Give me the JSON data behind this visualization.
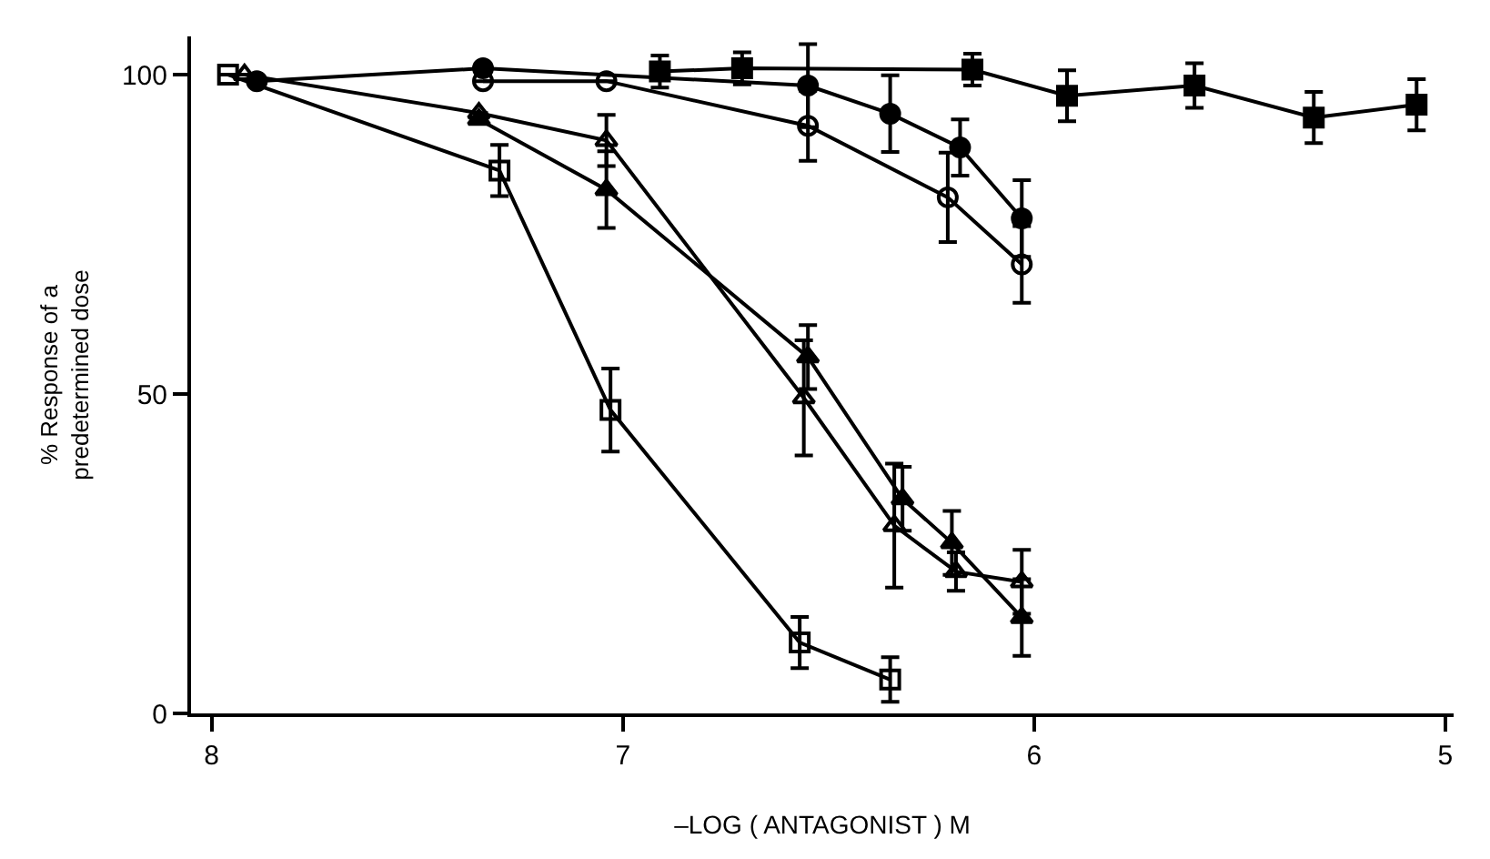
{
  "chart_data": {
    "type": "line",
    "xlabel": "–LOG ( ANTAGONIST ) M",
    "ylabel": "% Response of a\npredetermined dose",
    "xlim": [
      8.05,
      4.98
    ],
    "xticks": [
      8,
      7,
      6,
      5
    ],
    "ylim": [
      0,
      106
    ],
    "yticks": [
      0,
      50,
      100
    ],
    "line_style": "solid",
    "series": [
      {
        "color": "#000000",
        "marker": "square",
        "x": [
          6.91,
          6.71,
          6.15,
          5.92,
          5.61,
          5.32,
          5.07
        ],
        "values": [
          100.5,
          101,
          100.8,
          96.7,
          98.3,
          93.3,
          95.3
        ],
        "errors": [
          2.5,
          2.5,
          2.5,
          4,
          3.5,
          4,
          4
        ]
      },
      {
        "color": "#000000",
        "marker": "circle",
        "x": [
          7.89,
          7.34,
          6.55,
          6.35,
          6.18,
          6.03
        ],
        "values": [
          99,
          101,
          98.3,
          93.9,
          88.6,
          77.5
        ],
        "errors": [
          null,
          null,
          6.5,
          6,
          4.4,
          6
        ]
      },
      {
        "color": "#000000",
        "marker": "circle-open",
        "x": [
          7.34,
          7.04,
          6.55,
          6.21,
          6.03
        ],
        "values": [
          99,
          99,
          92,
          80.8,
          70.3
        ],
        "errors": [
          null,
          null,
          5.5,
          7,
          6
        ]
      },
      {
        "color": "#000000",
        "marker": "triangle",
        "x": [
          7.35,
          7.04,
          6.55,
          6.32,
          6.2,
          6.03
        ],
        "values": [
          93,
          82,
          55.8,
          33.6,
          26.7,
          15
        ],
        "errors": [
          null,
          6,
          5,
          5,
          5,
          6
        ]
      },
      {
        "color": "#000000",
        "marker": "triangle-open",
        "x": [
          7.92,
          7.35,
          7.04,
          6.56,
          6.34,
          6.19,
          6.03
        ],
        "values": [
          100,
          94,
          89.7,
          49.4,
          29.4,
          22.2,
          20.6
        ],
        "errors": [
          null,
          null,
          4,
          9,
          9.7,
          3,
          5
        ]
      },
      {
        "color": "#000000",
        "marker": "square-open",
        "x": [
          7.96,
          7.3,
          7.03,
          6.57,
          6.35
        ],
        "values": [
          100,
          85,
          47.5,
          11.1,
          5.3
        ],
        "errors": [
          null,
          4,
          6.5,
          4,
          3.5
        ]
      }
    ]
  }
}
